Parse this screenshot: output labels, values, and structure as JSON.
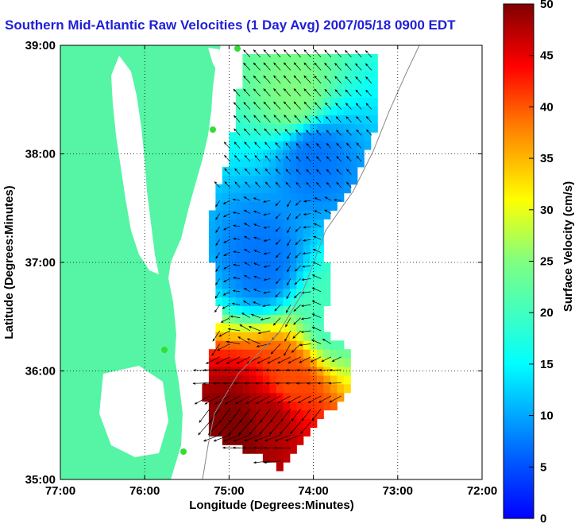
{
  "title": "Southern Mid-Atlantic Raw Velocities (1 Day Avg) 2007/05/18 0900 EDT",
  "chart_data": {
    "type": "heatmap",
    "xlabel": "Longitude (Degrees:Minutes)",
    "ylabel": "Latitude (Degrees:Minutes)",
    "xlim": [
      -77,
      -72
    ],
    "ylim": [
      35,
      39
    ],
    "x_ticks": [
      "77:00",
      "76:00",
      "75:00",
      "74:00",
      "73:00",
      "72:00"
    ],
    "y_ticks": [
      "35:00",
      "36:00",
      "37:00",
      "38:00",
      "39:00"
    ],
    "grid": true,
    "colorbar": {
      "label": "Surface Velocity (cm/s)",
      "min": 0,
      "max": 50,
      "ticks": [
        "0",
        "5",
        "10",
        "15",
        "20",
        "25",
        "30",
        "35",
        "40",
        "45",
        "50"
      ]
    },
    "velocity_regions": [
      {
        "region": "north",
        "lon": -74.2,
        "lat": 38.5,
        "speed_cm_s": 25
      },
      {
        "region": "north-center",
        "lon": -74.0,
        "lat": 38.0,
        "speed_cm_s": 12
      },
      {
        "region": "central",
        "lon": -74.6,
        "lat": 37.0,
        "speed_cm_s": 12
      },
      {
        "region": "central-east",
        "lon": -73.8,
        "lat": 36.5,
        "speed_cm_s": 22
      },
      {
        "region": "southern",
        "lon": -74.5,
        "lat": 35.6,
        "speed_cm_s": 48
      },
      {
        "region": "southwest",
        "lon": -74.9,
        "lat": 35.5,
        "speed_cm_s": 50
      },
      {
        "region": "southeast",
        "lon": -74.3,
        "lat": 35.9,
        "speed_cm_s": 40
      }
    ]
  }
}
